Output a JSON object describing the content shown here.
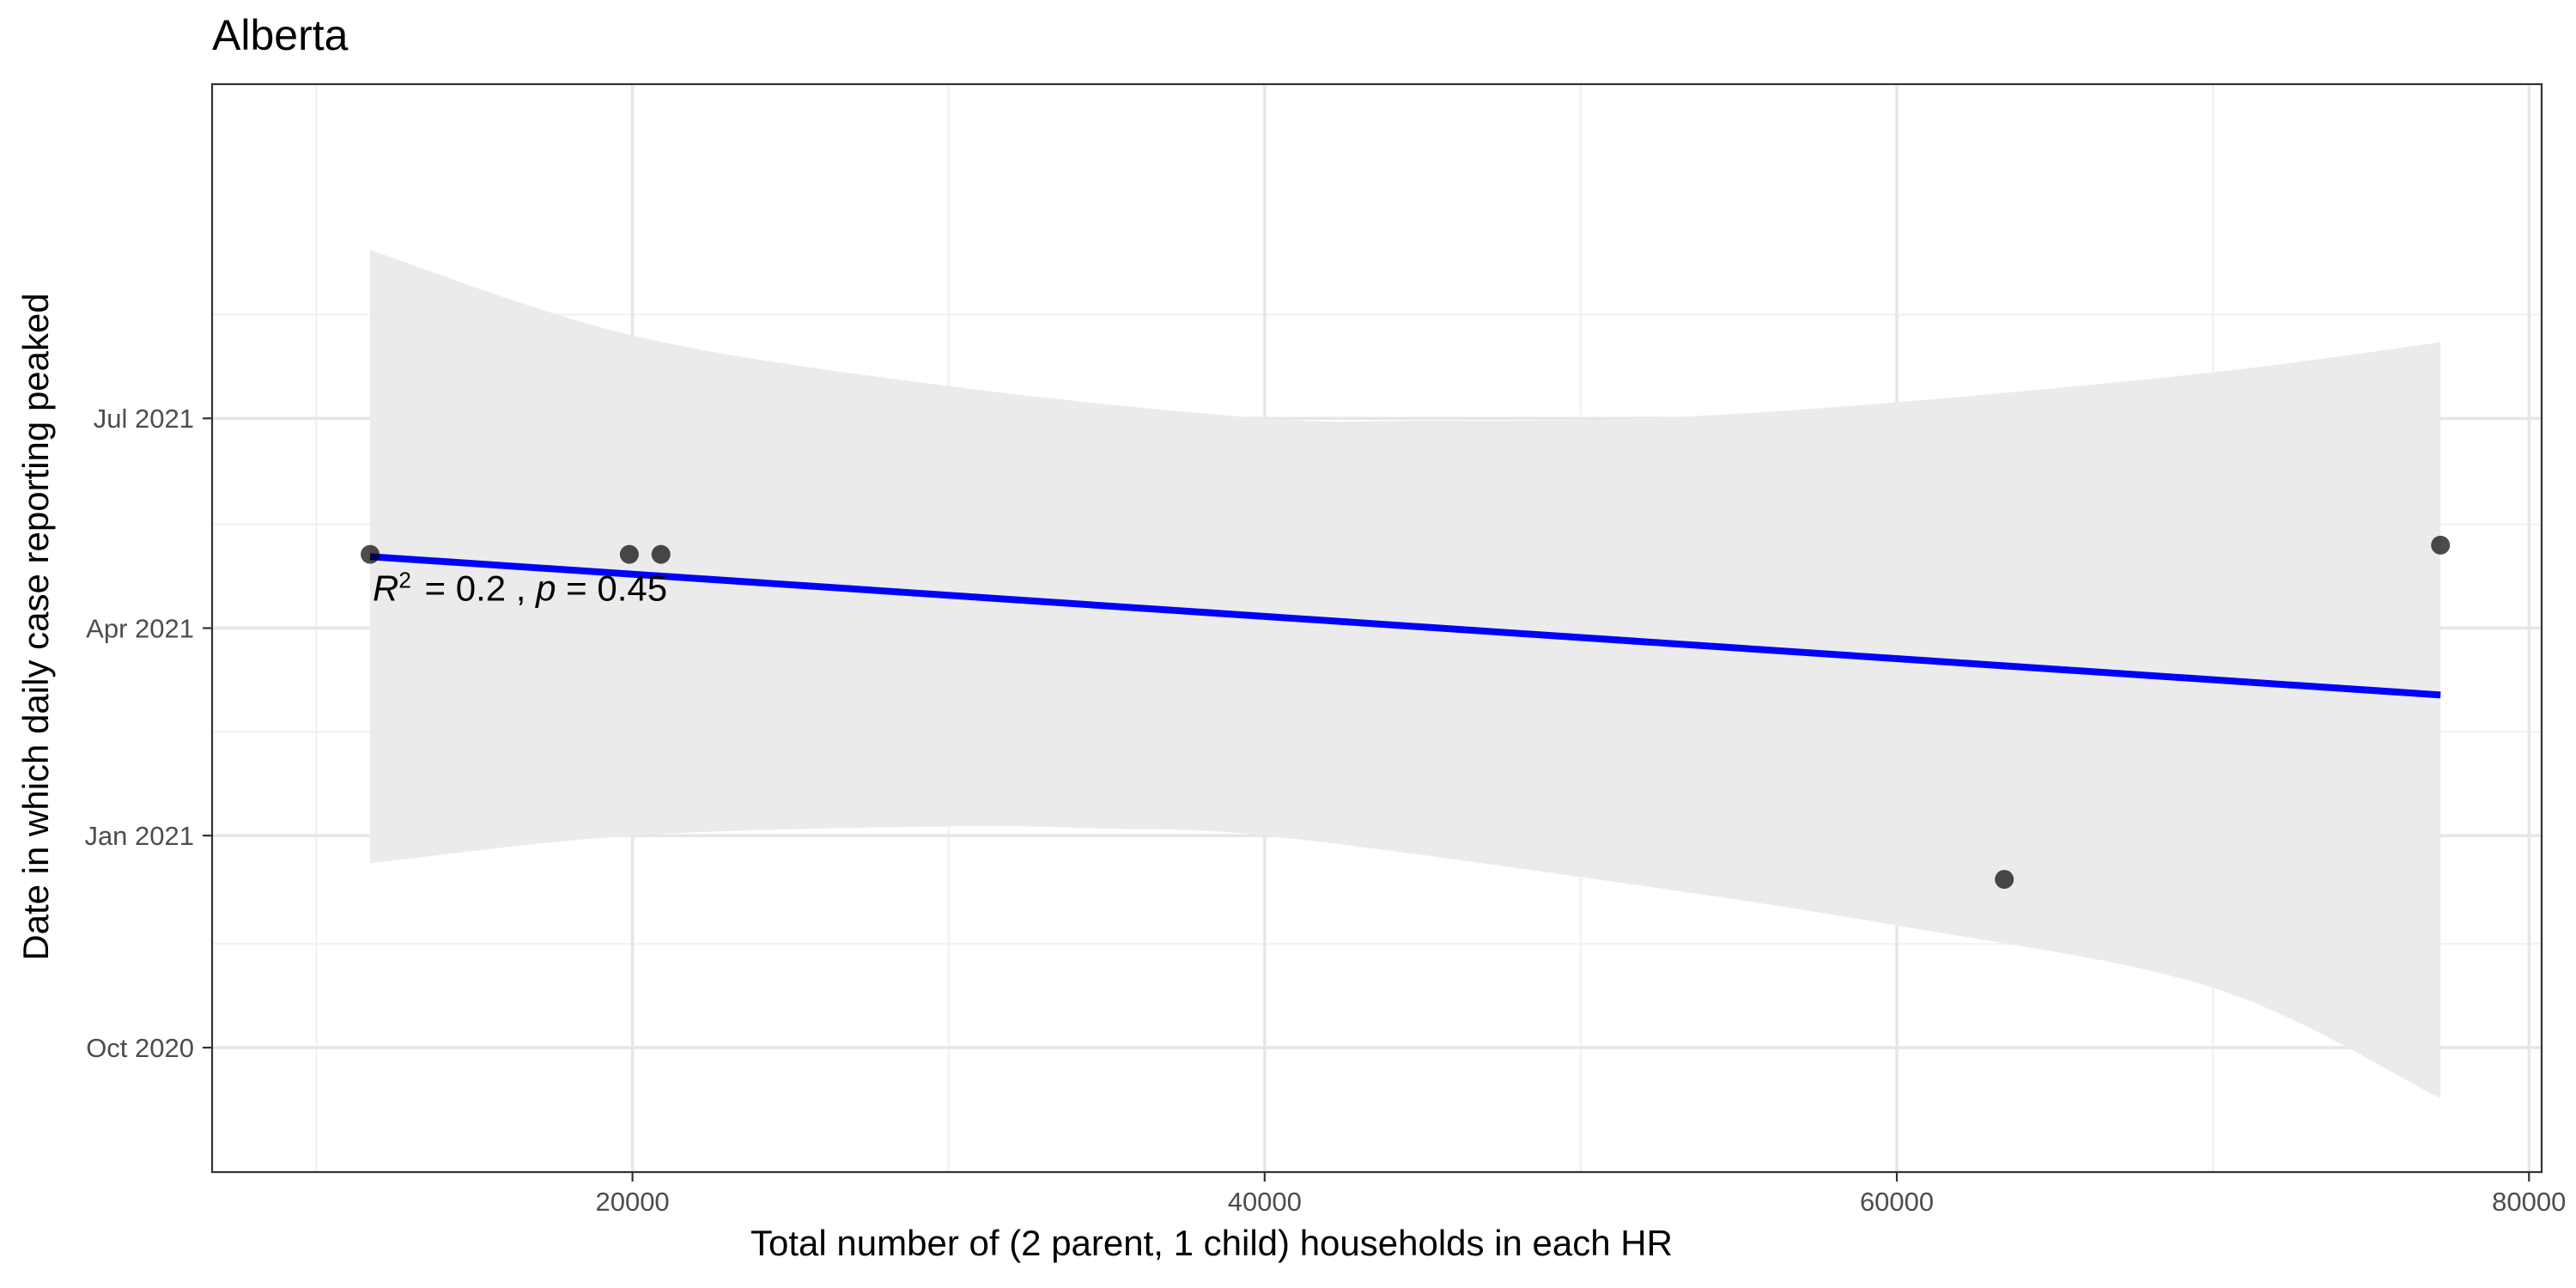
{
  "chart_data": {
    "type": "scatter",
    "title": "Alberta",
    "xlabel": "Total number of (2 parent, 1 child) households in each HR",
    "ylabel": "Date in which daily case reporting peaked",
    "xlim": [
      6700,
      80400
    ],
    "ylim": [
      "2020-08-08",
      "2021-11-23"
    ],
    "x_ticks": [
      {
        "value": 20000,
        "label": "20000"
      },
      {
        "value": 40000,
        "label": "40000"
      },
      {
        "value": 60000,
        "label": "60000"
      },
      {
        "value": 80000,
        "label": "80000"
      }
    ],
    "y_ticks": [
      {
        "value": "2020-10-01",
        "label": "Oct 2020"
      },
      {
        "value": "2021-01-01",
        "label": "Jan 2021"
      },
      {
        "value": "2021-04-01",
        "label": "Apr 2021"
      },
      {
        "value": "2021-07-01",
        "label": "Jul 2021"
      }
    ],
    "x_minor_ticks": [
      10000,
      30000,
      50000,
      70000
    ],
    "y_minor_ticks": [
      "2020-11-15",
      "2021-02-15",
      "2021-05-16",
      "2021-08-15"
    ],
    "points": [
      {
        "x": 11700,
        "y": "2021-05-03"
      },
      {
        "x": 19900,
        "y": "2021-05-03"
      },
      {
        "x": 20900,
        "y": "2021-05-03"
      },
      {
        "x": 63400,
        "y": "2020-12-13"
      },
      {
        "x": 77200,
        "y": "2021-05-07"
      }
    ],
    "fit_line": {
      "color": "#0000ff",
      "start": {
        "x": 11700,
        "y": "2021-05-02"
      },
      "end": {
        "x": 77200,
        "y": "2021-03-03"
      }
    },
    "confidence_band": {
      "color": "#ebebeb",
      "upper": [
        {
          "x": 11700,
          "y": "2021-09-12"
        },
        {
          "x": 20000,
          "y": "2021-08-06"
        },
        {
          "x": 30000,
          "y": "2021-07-15"
        },
        {
          "x": 40000,
          "y": "2021-07-01"
        },
        {
          "x": 45000,
          "y": "2021-06-30"
        },
        {
          "x": 52000,
          "y": "2021-07-01"
        },
        {
          "x": 60000,
          "y": "2021-07-08"
        },
        {
          "x": 70000,
          "y": "2021-07-21"
        },
        {
          "x": 77200,
          "y": "2021-08-03"
        }
      ],
      "lower": [
        {
          "x": 11700,
          "y": "2020-12-20"
        },
        {
          "x": 20000,
          "y": "2021-01-01"
        },
        {
          "x": 30000,
          "y": "2021-01-05"
        },
        {
          "x": 35000,
          "y": "2021-01-04"
        },
        {
          "x": 40000,
          "y": "2021-01-01"
        },
        {
          "x": 50000,
          "y": "2020-12-14"
        },
        {
          "x": 60000,
          "y": "2020-11-23"
        },
        {
          "x": 70000,
          "y": "2020-10-27"
        },
        {
          "x": 77200,
          "y": "2020-09-09"
        }
      ]
    },
    "annotation": {
      "r2": "0.2",
      "p": "0.45"
    },
    "grid": true,
    "legend": "none"
  }
}
